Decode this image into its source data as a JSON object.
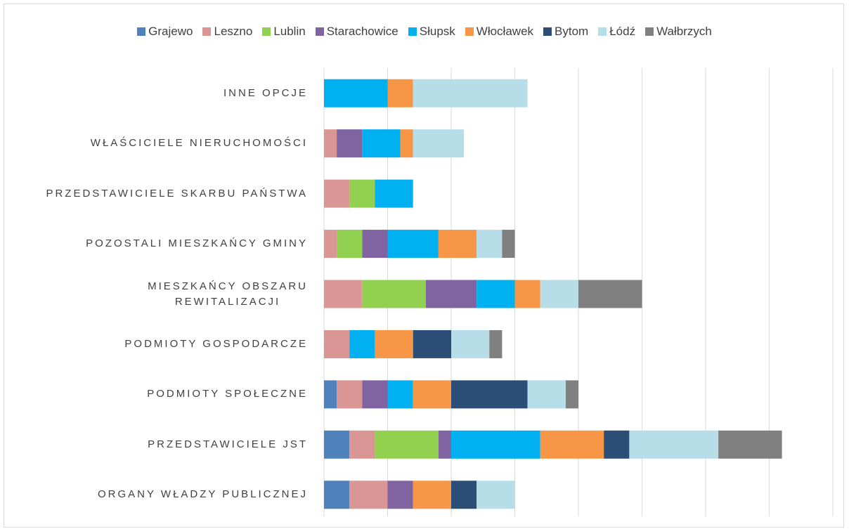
{
  "chart_data": {
    "type": "stacked-barh",
    "categories": [
      "INNE OPCJE",
      "WŁAŚCICIELE NIERUCHOMOŚCI",
      "PRZEDSTAWICIELE SKARBU PAŃSTWA",
      "POZOSTALI MIESZKAŃCY GMINY",
      "MIESZKAŃCY OBSZARU\nREWITALIZACJI",
      "PODMIOTY GOSPODARCZE",
      "PODMIOTY SPOŁECZNE",
      "PRZEDSTAWICIELE JST",
      "ORGANY WŁADZY PUBLICZNEJ"
    ],
    "series": [
      {
        "name": "Grajewo",
        "color": "#4f81bd",
        "values": [
          0,
          0,
          0,
          0,
          0,
          0,
          1,
          2,
          2
        ]
      },
      {
        "name": "Leszno",
        "color": "#d99694",
        "values": [
          0,
          1,
          2,
          1,
          3,
          2,
          2,
          2,
          3
        ]
      },
      {
        "name": "Lublin",
        "color": "#92d050",
        "values": [
          0,
          0,
          2,
          2,
          5,
          0,
          0,
          5,
          0
        ]
      },
      {
        "name": "Starachowice",
        "color": "#8064a2",
        "values": [
          0,
          2,
          0,
          2,
          4,
          0,
          2,
          1,
          2
        ]
      },
      {
        "name": "Słupsk",
        "color": "#00b0f0",
        "values": [
          5,
          3,
          3,
          4,
          3,
          2,
          2,
          7,
          0
        ]
      },
      {
        "name": "Włocławek",
        "color": "#f79646",
        "values": [
          2,
          1,
          0,
          3,
          2,
          3,
          3,
          5,
          3
        ]
      },
      {
        "name": "Bytom",
        "color": "#2c4d75",
        "values": [
          0,
          0,
          0,
          0,
          0,
          3,
          6,
          2,
          2
        ]
      },
      {
        "name": "Łódź",
        "color": "#b7dee8",
        "values": [
          9,
          4,
          0,
          2,
          3,
          3,
          3,
          7,
          3
        ]
      },
      {
        "name": "Wałbrzych",
        "color": "#808080",
        "values": [
          0,
          0,
          0,
          1,
          5,
          1,
          1,
          5,
          0
        ]
      }
    ],
    "xlim": [
      0,
      40
    ],
    "xticks": [
      0,
      5,
      10,
      15,
      20,
      25,
      30,
      35,
      40
    ],
    "grid": true,
    "legend": "top"
  }
}
